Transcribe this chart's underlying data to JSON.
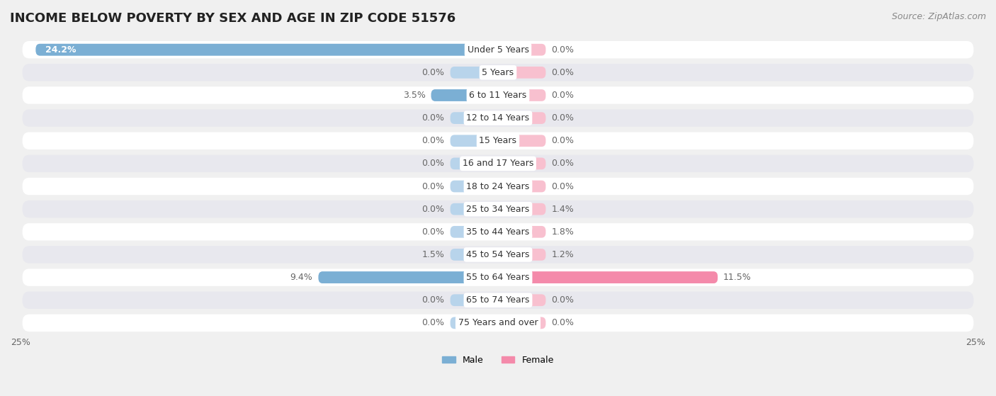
{
  "title": "INCOME BELOW POVERTY BY SEX AND AGE IN ZIP CODE 51576",
  "source": "Source: ZipAtlas.com",
  "categories": [
    "Under 5 Years",
    "5 Years",
    "6 to 11 Years",
    "12 to 14 Years",
    "15 Years",
    "16 and 17 Years",
    "18 to 24 Years",
    "25 to 34 Years",
    "35 to 44 Years",
    "45 to 54 Years",
    "55 to 64 Years",
    "65 to 74 Years",
    "75 Years and over"
  ],
  "male": [
    24.2,
    0.0,
    3.5,
    0.0,
    0.0,
    0.0,
    0.0,
    0.0,
    0.0,
    1.5,
    9.4,
    0.0,
    0.0
  ],
  "female": [
    0.0,
    0.0,
    0.0,
    0.0,
    0.0,
    0.0,
    0.0,
    1.4,
    1.8,
    1.2,
    11.5,
    0.0,
    0.0
  ],
  "male_color": "#7bafd4",
  "female_color": "#f48aaa",
  "male_color_light": "#b8d4eb",
  "female_color_light": "#f8c0cf",
  "male_label": "Male",
  "female_label": "Female",
  "xlim": 25.0,
  "bar_height": 0.52,
  "min_bar": 2.5,
  "background_color": "#f0f0f0",
  "row_bg_light": "#ffffff",
  "row_bg_dark": "#e8e8ee",
  "title_fontsize": 13,
  "source_fontsize": 9,
  "label_fontsize": 9,
  "axis_fontsize": 9,
  "category_fontsize": 9
}
